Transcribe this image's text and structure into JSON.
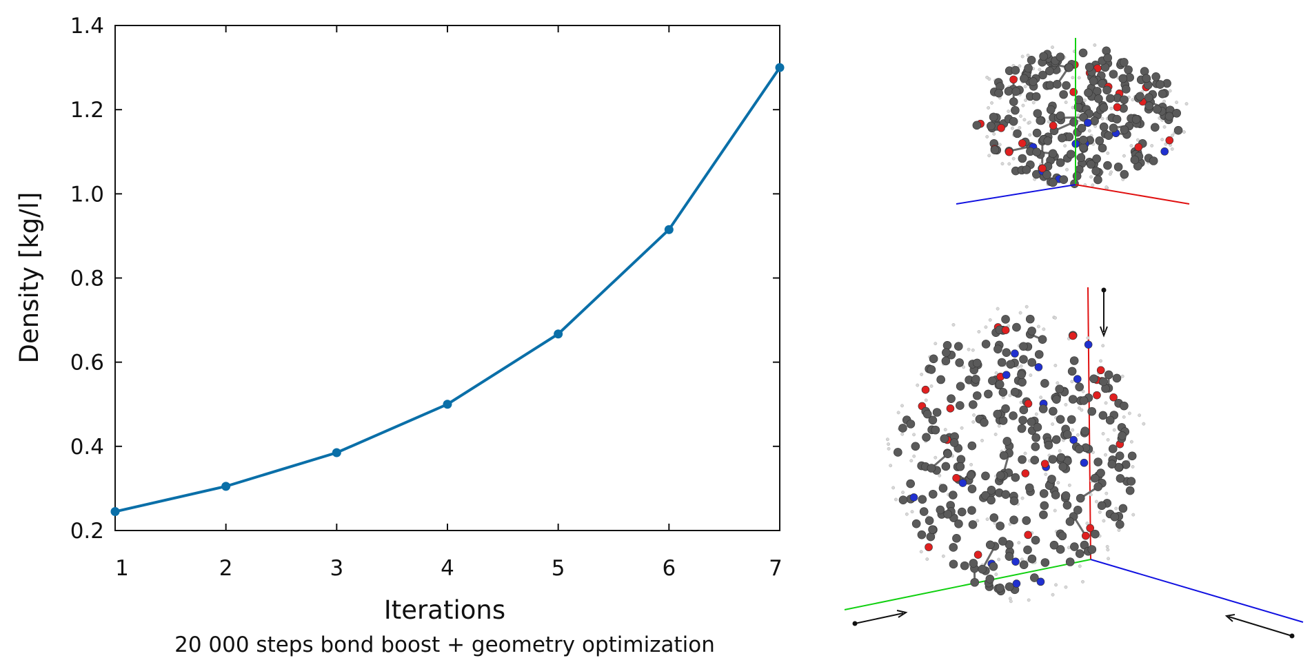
{
  "chart_data": {
    "type": "line",
    "xlabel": "Iterations",
    "ylabel": "Density [kg/l]",
    "subtitle": "20 000 steps bond boost + geometry optimization",
    "xlim": [
      1,
      7
    ],
    "ylim": [
      0.2,
      1.4
    ],
    "x_ticks": [
      1,
      2,
      3,
      4,
      5,
      6,
      7
    ],
    "y_ticks": [
      "0.2",
      "0.4",
      "0.6",
      "0.8",
      "1.0",
      "1.2",
      "1.4"
    ],
    "grid": false,
    "series": [
      {
        "color": "#0a6fa8",
        "x": [
          1,
          2,
          3,
          4,
          5,
          6,
          7
        ],
        "y": [
          0.245,
          0.305,
          0.385,
          0.5,
          0.667,
          0.915,
          1.3
        ]
      }
    ]
  },
  "figure": {
    "molecule_top": "molecular-structure-compressed-box",
    "molecule_bottom": "molecular-structure-initial-expanded",
    "atom_colors": {
      "carbon": "#5a5a5a",
      "oxygen": "#e02020",
      "nitrogen": "#2030d0",
      "hydrogen": "#d8d8d8"
    },
    "axis_colors": {
      "x": "#e01010",
      "y": "#10d010",
      "z": "#1010e0"
    }
  }
}
